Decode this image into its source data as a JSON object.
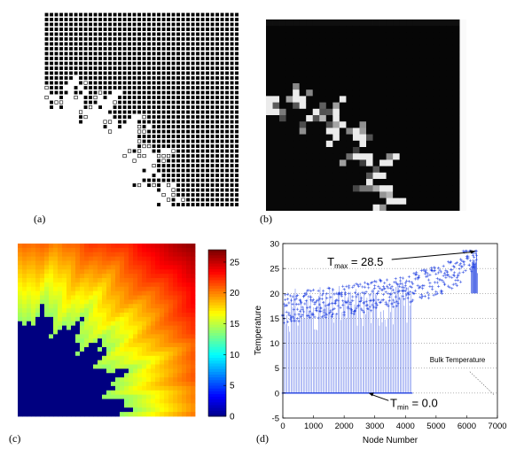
{
  "panels": {
    "a": {
      "label": "(a)"
    },
    "b": {
      "label": "(b)"
    },
    "c": {
      "label": "(c)"
    },
    "d": {
      "label": "(d)"
    }
  },
  "colorbar": {
    "ticks": [
      "0",
      "5",
      "10",
      "15",
      "20",
      "25"
    ],
    "colormap": "jet"
  },
  "chart_data": [
    {
      "type": "heatmap",
      "panel": "c",
      "zlim": [
        0,
        27
      ],
      "colormap": "jet",
      "colorbar_ticks": [
        0,
        5,
        10,
        15,
        20,
        25
      ]
    },
    {
      "type": "scatter",
      "panel": "d",
      "xlabel": "Node Number",
      "ylabel": "Temperature",
      "xlim": [
        0,
        7000
      ],
      "ylim": [
        -5,
        30
      ],
      "xticks": [
        0,
        1000,
        2000,
        3000,
        4000,
        5000,
        6000,
        7000
      ],
      "yticks": [
        -5,
        0,
        5,
        10,
        15,
        20,
        25,
        30
      ],
      "grid": true,
      "series_color": "#1f3fe0",
      "annotations": {
        "tmax": {
          "prefix": "T",
          "sub": "max",
          "value": "= 28.5"
        },
        "tmin": {
          "prefix": "T",
          "sub": "min",
          "value": "= 0.0"
        },
        "bulk": "Bulk Temperature"
      },
      "tmax_value": 28.5,
      "tmin_value": 0.0,
      "zero_nodes_end": 4200,
      "max_node": 6350
    }
  ]
}
